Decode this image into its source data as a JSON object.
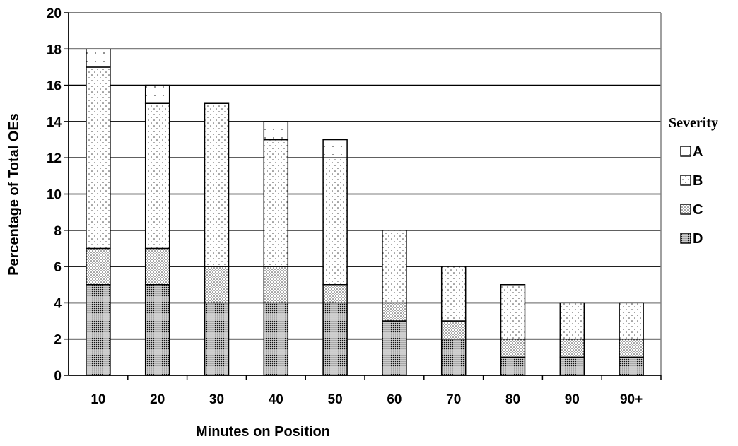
{
  "chart_data": {
    "type": "bar",
    "stacked": true,
    "xlabel": "Minutes on Position",
    "ylabel": "Percentage of Total OEs",
    "ylim": [
      0,
      20
    ],
    "yticks": [
      0,
      2,
      4,
      6,
      8,
      10,
      12,
      14,
      16,
      18,
      20
    ],
    "grid": true,
    "legend_title": "Severity",
    "legend_position": "right",
    "categories": [
      "10",
      "20",
      "30",
      "40",
      "50",
      "60",
      "70",
      "80",
      "90",
      "90+"
    ],
    "series": [
      {
        "name": "D",
        "values": [
          5,
          5,
          4,
          4,
          4,
          3,
          2,
          1,
          1,
          1
        ]
      },
      {
        "name": "C",
        "values": [
          2,
          2,
          2,
          2,
          1,
          1,
          1,
          1,
          1,
          1
        ]
      },
      {
        "name": "B",
        "values": [
          10,
          8,
          9,
          7,
          7,
          4,
          3,
          3,
          2,
          2
        ]
      },
      {
        "name": "A",
        "values": [
          1,
          1,
          0,
          1,
          1,
          0,
          0,
          0,
          0,
          0
        ]
      }
    ],
    "legend_order": [
      "A",
      "B",
      "C",
      "D"
    ]
  }
}
